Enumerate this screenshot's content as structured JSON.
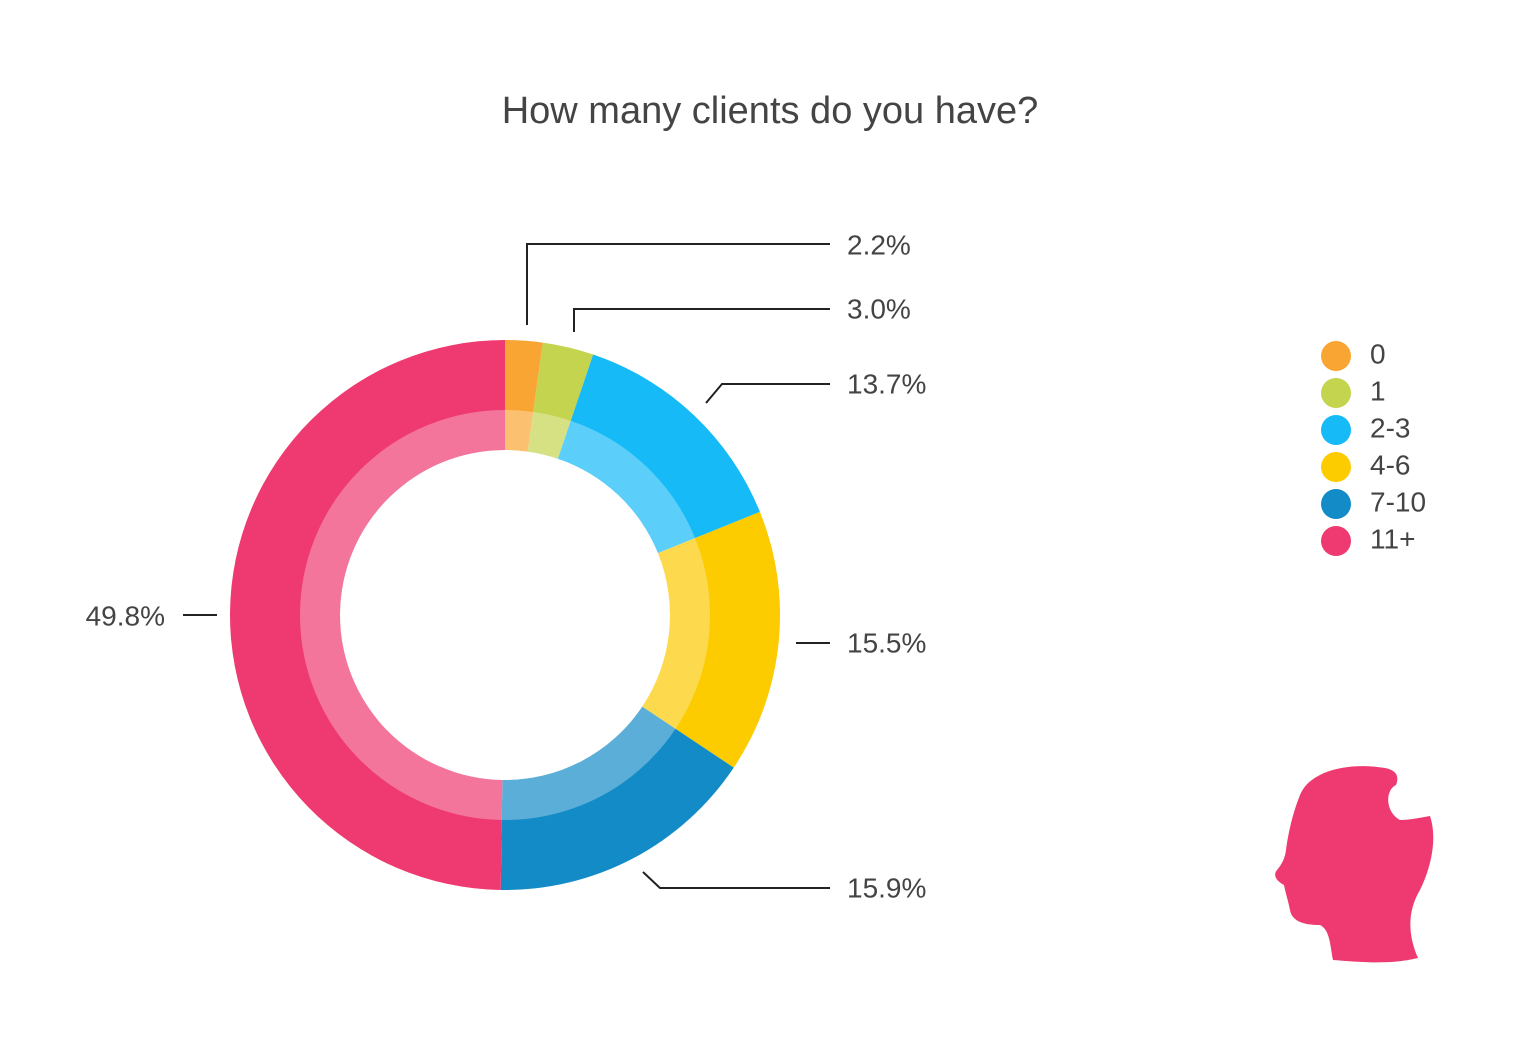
{
  "chart_data": {
    "type": "donut",
    "title": "How many clients do you have?",
    "categories": [
      "0",
      "1",
      "2-3",
      "4-6",
      "7-10",
      "11+"
    ],
    "values": [
      2.2,
      3.0,
      13.7,
      15.5,
      15.9,
      49.8
    ],
    "value_labels": [
      "2.2%",
      "3.0%",
      "13.7%",
      "15.5%",
      "15.9%",
      "49.8%"
    ],
    "colors": [
      "#f9a533",
      "#c4d44f",
      "#15baf7",
      "#fccb00",
      "#138bc6",
      "#ee3a70"
    ],
    "legend": "right"
  }
}
